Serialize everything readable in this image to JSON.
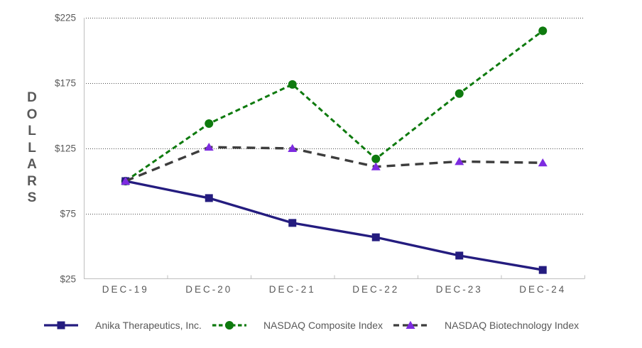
{
  "chart_data": {
    "type": "line",
    "title": "",
    "ylabel": "DOLLARS",
    "xlabel": "",
    "categories": [
      "DEC-19",
      "DEC-20",
      "DEC-21",
      "DEC-22",
      "DEC-23",
      "DEC-24"
    ],
    "ylim": [
      25,
      225
    ],
    "yticks": [
      25,
      75,
      125,
      175,
      225
    ],
    "ytick_prefix": "$",
    "grid": "horizontal dotted gridlines at 75, 125, 175, 225; no gridline at 25",
    "legend_position": "bottom",
    "series": [
      {
        "name": "Anika Therapeutics, Inc.",
        "values": [
          100,
          87,
          68,
          57,
          43,
          32
        ],
        "line_color": "#241c7f",
        "marker_color": "#241c7f",
        "marker": "square",
        "line_style": "solid"
      },
      {
        "name": "NASDAQ Composite Index",
        "values": [
          100,
          144,
          174,
          117,
          167,
          215
        ],
        "line_color": "#0e7a0e",
        "marker_color": "#0e7a0e",
        "marker": "circle",
        "line_style": "dashed"
      },
      {
        "name": "NASDAQ Biotechnology Index",
        "values": [
          100,
          126,
          125,
          111,
          115,
          114
        ],
        "line_color": "#3d3d3d",
        "marker_color": "#7d2be0",
        "marker": "triangle",
        "line_style": "long-dash"
      }
    ],
    "colors": {
      "axis_line": "#bfbfbf",
      "gridline": "#4d4d4d",
      "label_text": "#595959"
    }
  }
}
